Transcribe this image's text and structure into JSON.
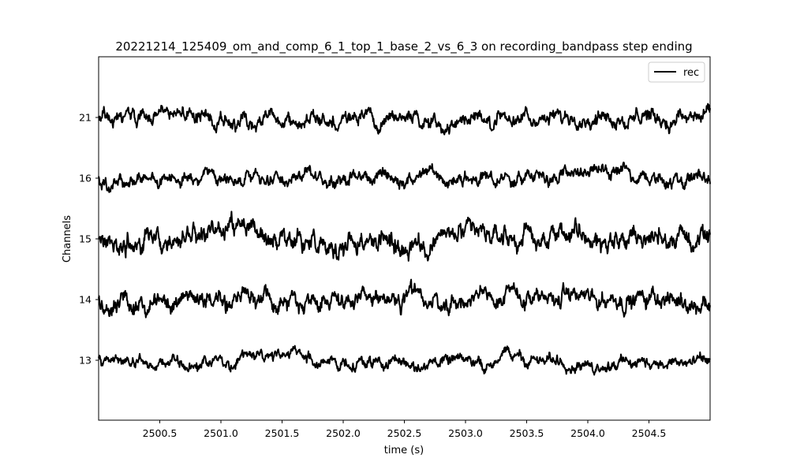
{
  "chart_data": {
    "type": "line",
    "title": "20221214_125409_om_and_comp_6_1_top_1_base_2_vs_6_3 on recording_bandpass step ending",
    "xlabel": "time (s)",
    "ylabel": "Channels",
    "xlim": [
      2500.0,
      2505.0
    ],
    "x_ticks": [
      "2500.5",
      "2501.0",
      "2501.5",
      "2502.0",
      "2502.5",
      "2503.0",
      "2503.5",
      "2504.0",
      "2504.5"
    ],
    "x_tick_values": [
      2500.5,
      2501.0,
      2501.5,
      2502.0,
      2502.5,
      2503.0,
      2503.5,
      2504.0,
      2504.5
    ],
    "channels": [
      "13",
      "14",
      "15",
      "16",
      "21"
    ],
    "legend": {
      "label": "rec",
      "position": "top-right"
    },
    "line_color": "#000000",
    "grid": false,
    "series": [
      {
        "channel": "21",
        "amplitude": 0.28,
        "seed": 21
      },
      {
        "channel": "16",
        "amplitude": 0.26,
        "seed": 16
      },
      {
        "channel": "15",
        "amplitude": 0.45,
        "seed": 15
      },
      {
        "channel": "14",
        "amplitude": 0.33,
        "seed": 14
      },
      {
        "channel": "13",
        "amplitude": 0.24,
        "seed": 13
      }
    ]
  }
}
